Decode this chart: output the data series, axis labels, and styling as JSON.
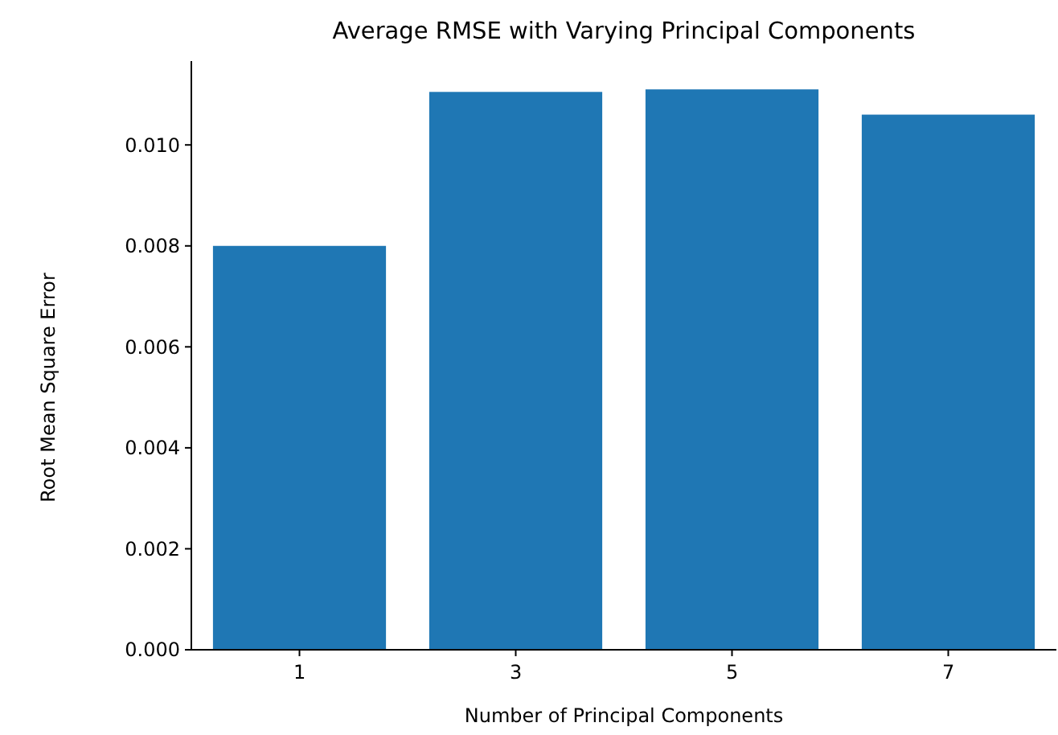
{
  "chart_data": {
    "type": "bar",
    "title": "Average RMSE with Varying Principal Components",
    "xlabel": "Number of Principal Components",
    "ylabel": "Root Mean Square Error",
    "categories": [
      "1",
      "3",
      "5",
      "7"
    ],
    "values": [
      0.008,
      0.01105,
      0.0111,
      0.0106
    ],
    "color": "#1f77b4",
    "ylim": [
      0,
      0.01166
    ],
    "yticks": [
      {
        "value": 0,
        "label": "0.000"
      },
      {
        "value": 0.002,
        "label": "0.002"
      },
      {
        "value": 0.004,
        "label": "0.004"
      },
      {
        "value": 0.006,
        "label": "0.006"
      },
      {
        "value": 0.008,
        "label": "0.008"
      },
      {
        "value": 0.01,
        "label": "0.010"
      }
    ],
    "grid": false
  }
}
